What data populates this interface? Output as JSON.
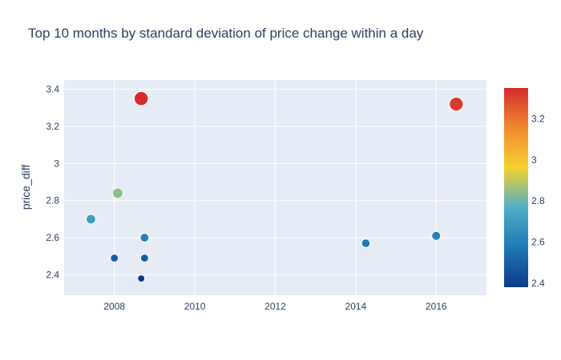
{
  "chart_data": {
    "type": "scatter",
    "title": "Top 10 months by standard deviation of price change within a day",
    "xlabel": "",
    "ylabel": "price_diff",
    "xlim": [
      2006.75,
      2017.25
    ],
    "ylim": [
      2.29,
      3.45
    ],
    "x_ticks": [
      2008,
      2010,
      2012,
      2014,
      2016
    ],
    "x_tick_labels": [
      "2008",
      "2010",
      "2012",
      "2014",
      "2016"
    ],
    "y_ticks": [
      2.4,
      2.6,
      2.8,
      3.0,
      3.2,
      3.4
    ],
    "y_tick_labels": [
      "2.4",
      "2.6",
      "2.8",
      "3",
      "3.2",
      "3.4"
    ],
    "grid": true,
    "plot_background": "#e5ecf6",
    "marker_size_by": "price_diff",
    "color_by": "price_diff",
    "points": [
      {
        "x": "2007-06",
        "y": 2.7
      },
      {
        "x": "2008-01",
        "y": 2.49
      },
      {
        "x": "2008-02",
        "y": 2.84
      },
      {
        "x": "2008-09",
        "y": 3.35
      },
      {
        "x": "2008-09",
        "y": 2.38
      },
      {
        "x": "2008-10",
        "y": 2.6
      },
      {
        "x": "2008-10",
        "y": 2.49
      },
      {
        "x": "2014-04",
        "y": 2.57
      },
      {
        "x": "2016-01",
        "y": 2.61
      },
      {
        "x": "2016-07",
        "y": 3.32
      }
    ],
    "colorbar": {
      "range": [
        2.38,
        3.35
      ],
      "ticks": [
        2.4,
        2.6,
        2.8,
        3.0,
        3.2
      ],
      "tick_labels": [
        "2.4",
        "2.6",
        "2.8",
        "3",
        "3.2"
      ],
      "colorscale": [
        "#0d3a8a",
        "#1f78b4",
        "#4fb0c6",
        "#f5d22e",
        "#f08a30",
        "#d62b2b"
      ]
    }
  }
}
